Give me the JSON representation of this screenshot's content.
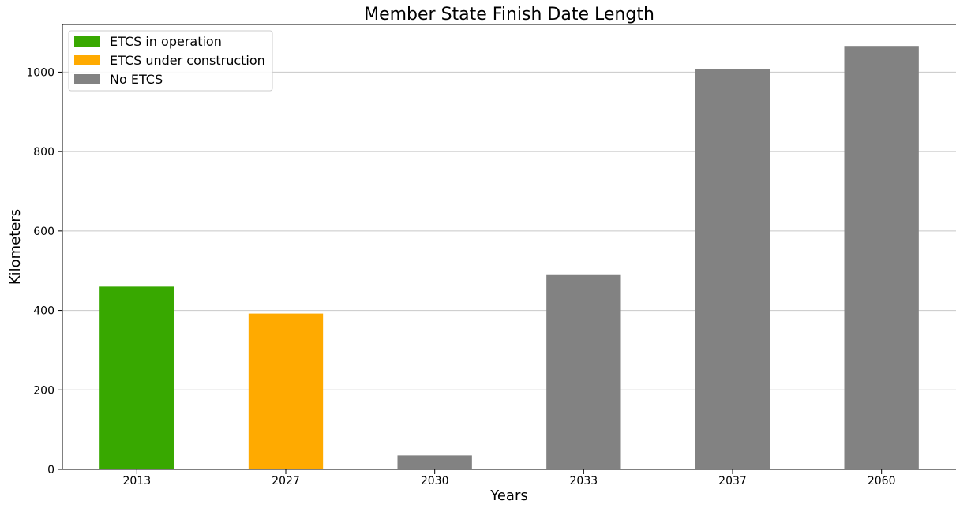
{
  "chart_data": {
    "type": "bar",
    "title": "Member State Finish Date Length",
    "xlabel": "Years",
    "ylabel": "Kilometers",
    "categories": [
      "2013",
      "2027",
      "2030",
      "2033",
      "2037",
      "2060"
    ],
    "values": [
      460,
      392,
      35,
      491,
      1008,
      1066
    ],
    "bar_status": [
      "ETCS in operation",
      "ETCS under construction",
      "No ETCS",
      "No ETCS",
      "No ETCS",
      "No ETCS"
    ],
    "ylim": [
      0,
      1120
    ],
    "yticks": [
      0,
      200,
      400,
      600,
      800,
      1000
    ],
    "grid": "horizontal",
    "legend_position": "top-left",
    "legend": [
      {
        "label": "ETCS in operation",
        "color": "#38a800"
      },
      {
        "label": "ETCS under construction",
        "color": "#ffaa00"
      },
      {
        "label": "No ETCS",
        "color": "#828282"
      }
    ]
  }
}
